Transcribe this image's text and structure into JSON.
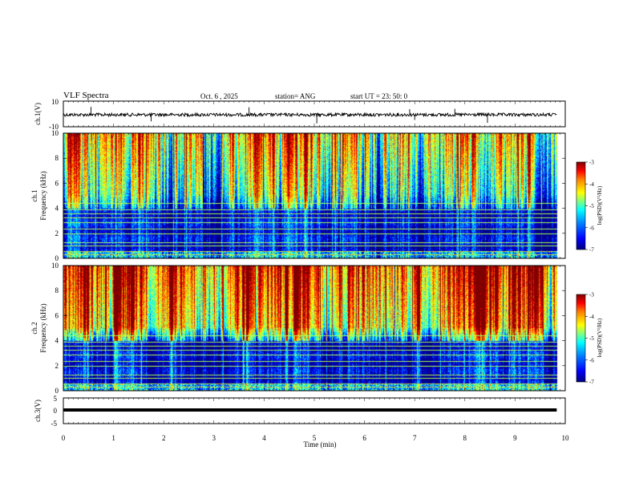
{
  "header": {
    "title": "VLF Spectra",
    "date": "Oct. 6 , 2025",
    "station": "station= ANG",
    "start_ut": "start UT =  23: 50: 0"
  },
  "chart_data": [
    {
      "type": "line",
      "name": "ch1-waveform",
      "ylabel": "ch.1(V)",
      "ylim": [
        -10,
        10
      ],
      "yticks": [
        "10",
        "-10"
      ],
      "baseline": 0,
      "spikes_at_min": [
        0.55,
        1.75,
        3.7,
        5.05,
        6.9,
        7.0,
        7.8,
        8.45
      ]
    },
    {
      "type": "heatmap",
      "name": "ch1-spectrogram",
      "ylabel_top": "ch.1",
      "ylabel": "Frequency (kHz)",
      "ylim": [
        0,
        10
      ],
      "yticks": [
        "0",
        "2",
        "4",
        "6",
        "8",
        "10"
      ],
      "colorbar": {
        "label": "log(PSD)(V²/Hz)",
        "range": [
          -7,
          -3
        ],
        "ticks": [
          "-3",
          "-4",
          "-5",
          "-6",
          "-7"
        ]
      },
      "intensity": "lower"
    },
    {
      "type": "heatmap",
      "name": "ch2-spectrogram",
      "ylabel_top": "ch.2",
      "ylabel": "Frequency (kHz)",
      "ylim": [
        0,
        10
      ],
      "yticks": [
        "0",
        "2",
        "4",
        "6",
        "8",
        "10"
      ],
      "colorbar": {
        "label": "log(PSD)(V²/Hz)",
        "range": [
          -7,
          -3
        ],
        "ticks": [
          "-3",
          "-4",
          "-5",
          "-6",
          "-7"
        ]
      },
      "intensity": "higher"
    },
    {
      "type": "line",
      "name": "ch3-waveform",
      "ylabel": "ch.3(V)",
      "ylim": [
        -5,
        5
      ],
      "yticks": [
        "5",
        "0",
        "-5"
      ],
      "baseline": 0
    }
  ],
  "xaxis": {
    "label": "Time (min)",
    "range": [
      0,
      10
    ],
    "data_end": 9.83,
    "ticks": [
      "0",
      "1",
      "2",
      "3",
      "4",
      "5",
      "6",
      "7",
      "8",
      "9",
      "10"
    ]
  },
  "colors": {
    "colormap": [
      "#00007f",
      "#0000ff",
      "#0080ff",
      "#00ffff",
      "#80ff80",
      "#ffff00",
      "#ff8000",
      "#ff0000",
      "#7f0000"
    ],
    "line": "#000000"
  }
}
